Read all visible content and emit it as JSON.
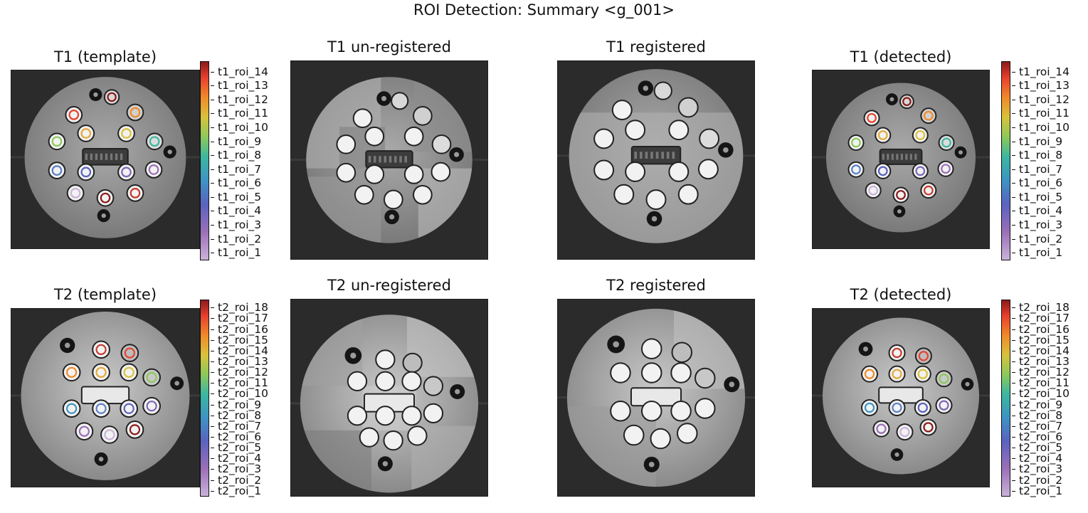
{
  "figure": {
    "title": "ROI Detection: Summary <g_001>"
  },
  "panels": {
    "t1_template": "T1 (template)",
    "t1_unregistered": "T1 un-registered",
    "t1_registered": "T1 registered",
    "t1_detected": "T1 (detected)",
    "t2_template": "T2 (template)",
    "t2_unregistered": "T2 un-registered",
    "t2_registered": "T2 registered",
    "t2_detected": "T2 (detected)"
  },
  "colorbars": {
    "t1_labels": [
      "t1_roi_14",
      "t1_roi_13",
      "t1_roi_12",
      "t1_roi_11",
      "t1_roi_10",
      "t1_roi_9",
      "t1_roi_8",
      "t1_roi_7",
      "t1_roi_6",
      "t1_roi_5",
      "t1_roi_4",
      "t1_roi_3",
      "t1_roi_2",
      "t1_roi_1"
    ],
    "t2_labels": [
      "t2_roi_18",
      "t2_roi_17",
      "t2_roi_16",
      "t2_roi_15",
      "t2_roi_14",
      "t2_roi_13",
      "t2_roi_12",
      "t2_roi_11",
      "t2_roi_10",
      "t2_roi_9",
      "t2_roi_8",
      "t2_roi_7",
      "t2_roi_6",
      "t2_roi_5",
      "t2_roi_4",
      "t2_roi_3",
      "t2_roi_2",
      "t2_roi_1"
    ]
  },
  "roi_colors": [
    "#8b1a1a",
    "#c83a2c",
    "#e8402e",
    "#f08a28",
    "#e6a83a",
    "#d9c23a",
    "#8cc85a",
    "#3cb7a0",
    "#3d94c4",
    "#5a7fc8",
    "#5a63c0",
    "#7e68b8",
    "#9b6fb8",
    "#c9b3d9"
  ]
}
